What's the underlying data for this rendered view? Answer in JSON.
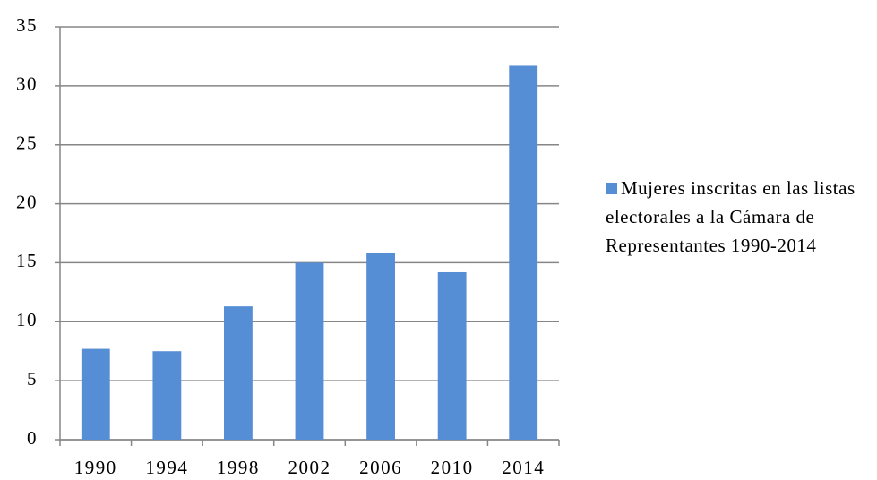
{
  "chart_data": {
    "type": "bar",
    "categories": [
      "1990",
      "1994",
      "1998",
      "2002",
      "2006",
      "2010",
      "2014"
    ],
    "series": [
      {
        "name": "Mujeres inscritas en las listas electorales a la Cámara de Representantes 1990-2014",
        "color": "#558ed5",
        "values": [
          7.7,
          7.5,
          11.3,
          15.0,
          15.8,
          14.2,
          31.7
        ]
      }
    ],
    "ylim": [
      0,
      35
    ],
    "yticks": [
      0,
      5,
      10,
      15,
      20,
      25,
      30,
      35
    ],
    "grid": true,
    "legend": "right"
  }
}
